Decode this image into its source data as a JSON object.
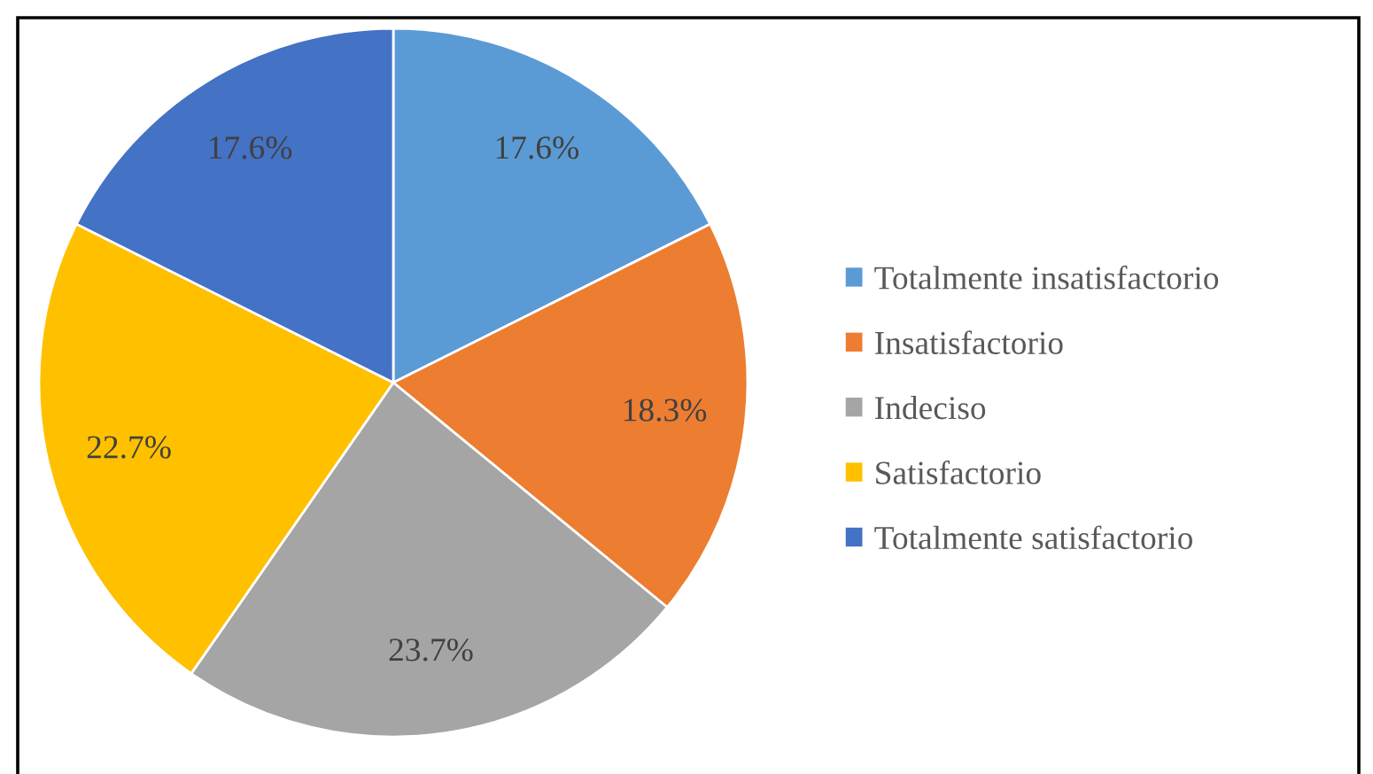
{
  "chart_data": {
    "type": "pie",
    "categories": [
      "Totalmente insatisfactorio",
      "Insatisfactorio",
      "Indeciso",
      "Satisfactorio",
      "Totalmente satisfactorio"
    ],
    "values": [
      17.6,
      18.3,
      23.7,
      22.7,
      17.6
    ],
    "colors": [
      "#5b9bd5",
      "#ed7d31",
      "#a5a5a5",
      "#ffc000",
      "#4472c4"
    ],
    "value_labels": [
      "17.6%",
      "18.3%",
      "23.7%",
      "22.7%",
      "17.6%"
    ],
    "legend": "right"
  }
}
